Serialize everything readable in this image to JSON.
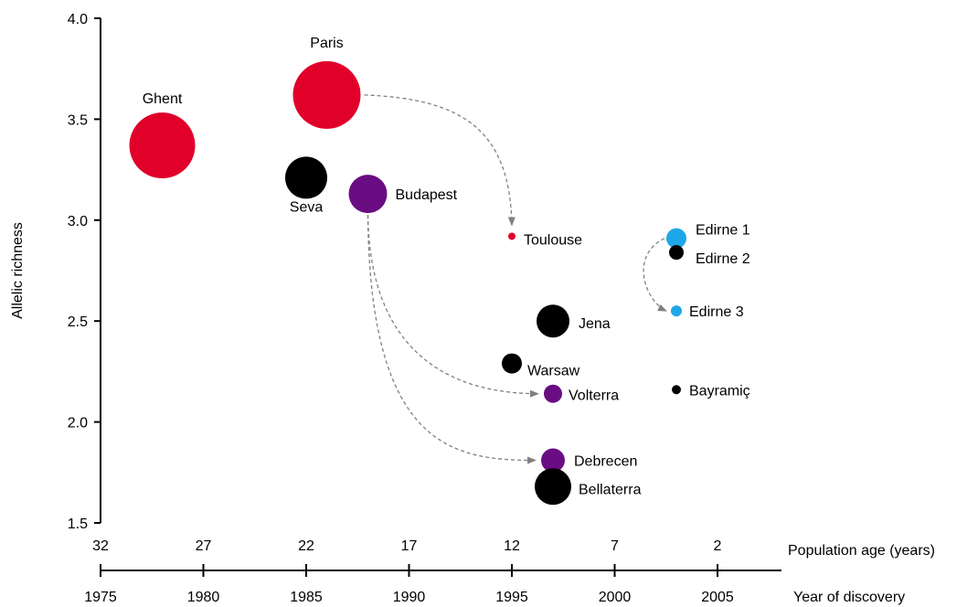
{
  "chart_data": {
    "type": "scatter",
    "ylabel": "Allelic richness",
    "ylim": [
      1.5,
      4.0
    ],
    "yticks": [
      "1.5",
      "2.0",
      "2.5",
      "3.0",
      "3.5",
      "4.0"
    ],
    "x_top_axis_label": "Population age (years)",
    "x_top_ticks": [
      "32",
      "27",
      "22",
      "17",
      "12",
      "7",
      "2"
    ],
    "x_bottom_axis_label": "Year of discovery",
    "x_bottom_ticks": [
      "1975",
      "1980",
      "1985",
      "1990",
      "1995",
      "2000",
      "2005"
    ],
    "xlim": [
      1975,
      2008
    ],
    "colors": {
      "red": "#e0002a",
      "purple": "#6a0d83",
      "black": "#000000",
      "blue": "#1ea7e8"
    },
    "points": [
      {
        "name": "Ghent",
        "year": 1978,
        "richness": 3.37,
        "size": 36,
        "color": "red"
      },
      {
        "name": "Paris",
        "year": 1986,
        "richness": 3.62,
        "size": 37,
        "color": "red"
      },
      {
        "name": "Seva",
        "year": 1985,
        "richness": 3.21,
        "size": 23,
        "color": "black"
      },
      {
        "name": "Budapest",
        "year": 1988,
        "richness": 3.13,
        "size": 21,
        "color": "purple"
      },
      {
        "name": "Toulouse",
        "year": 1995,
        "richness": 2.92,
        "size": 4,
        "color": "red"
      },
      {
        "name": "Edirne 1",
        "year": 2003,
        "richness": 2.91,
        "size": 11,
        "color": "blue"
      },
      {
        "name": "Edirne 2",
        "year": 2003,
        "richness": 2.84,
        "size": 8,
        "color": "black"
      },
      {
        "name": "Edirne 3",
        "year": 2003,
        "richness": 2.55,
        "size": 6,
        "color": "blue"
      },
      {
        "name": "Jena",
        "year": 1997,
        "richness": 2.5,
        "size": 18,
        "color": "black"
      },
      {
        "name": "Warsaw",
        "year": 1995,
        "richness": 2.29,
        "size": 11,
        "color": "black"
      },
      {
        "name": "Volterra",
        "year": 1997,
        "richness": 2.14,
        "size": 10,
        "color": "purple"
      },
      {
        "name": "Bayramiç",
        "year": 2003,
        "richness": 2.16,
        "size": 5,
        "color": "black"
      },
      {
        "name": "Debrecen",
        "year": 1997,
        "richness": 1.81,
        "size": 13,
        "color": "purple"
      },
      {
        "name": "Bellaterra",
        "year": 1997,
        "richness": 1.68,
        "size": 20,
        "color": "black"
      }
    ],
    "arrows": [
      {
        "from": "Paris",
        "to": "Toulouse"
      },
      {
        "from": "Budapest",
        "to": "Volterra"
      },
      {
        "from": "Budapest",
        "to": "Debrecen"
      },
      {
        "from": "Edirne 1",
        "to": "Edirne 3"
      }
    ]
  }
}
